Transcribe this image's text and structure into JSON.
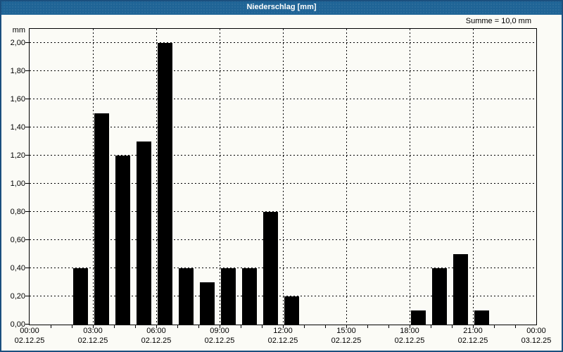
{
  "window": {
    "title": "Niederschlag [mm]"
  },
  "colors": {
    "titlebar_bg": "#1f6496",
    "titlebar_text": "#ffffff",
    "window_border": "#1b4f7e",
    "background": "#fbfbf6",
    "bar_fill": "#000000",
    "axis_line": "#000000",
    "grid_line": "#000000",
    "label_text": "#000000"
  },
  "chart_data": {
    "type": "bar",
    "title": "Niederschlag [mm]",
    "summary_label": "Summe = 10,0 mm",
    "sum_mm": 10.0,
    "y_unit": "mm",
    "ylim": [
      0,
      2.1
    ],
    "ytick_interval": 0.2,
    "yticks": [
      {
        "value": 0.0,
        "label": "0,00"
      },
      {
        "value": 0.2,
        "label": "0,20"
      },
      {
        "value": 0.4,
        "label": "0,40"
      },
      {
        "value": 0.6,
        "label": "0,60"
      },
      {
        "value": 0.8,
        "label": "0,80"
      },
      {
        "value": 1.0,
        "label": "1,00"
      },
      {
        "value": 1.2,
        "label": "1,20"
      },
      {
        "value": 1.4,
        "label": "1,40"
      },
      {
        "value": 1.6,
        "label": "1,60"
      },
      {
        "value": 1.8,
        "label": "1,80"
      },
      {
        "value": 2.0,
        "label": "2,00"
      }
    ],
    "x_hours_range": [
      0,
      24
    ],
    "x_minor_tick_hours": 1,
    "x_major_ticks": [
      {
        "hour": 0,
        "time": "00:00",
        "date": "02.12.25"
      },
      {
        "hour": 3,
        "time": "03:00",
        "date": "02.12.25"
      },
      {
        "hour": 6,
        "time": "06:00",
        "date": "02.12.25"
      },
      {
        "hour": 9,
        "time": "09:00",
        "date": "02.12.25"
      },
      {
        "hour": 12,
        "time": "12:00",
        "date": "02.12.25"
      },
      {
        "hour": 15,
        "time": "15:00",
        "date": "02.12.25"
      },
      {
        "hour": 18,
        "time": "18:00",
        "date": "02.12.25"
      },
      {
        "hour": 21,
        "time": "21:00",
        "date": "02.12.25"
      },
      {
        "hour": 24,
        "time": "00:00",
        "date": "03.12.25"
      }
    ],
    "grid": {
      "horizontal": "dashed",
      "vertical_dashed_every_hours": 3
    },
    "bars_unit": "mm",
    "bars": [
      {
        "start_hour": 2,
        "value": 0.4
      },
      {
        "start_hour": 3,
        "value": 1.5
      },
      {
        "start_hour": 4,
        "value": 1.2
      },
      {
        "start_hour": 5,
        "value": 1.3
      },
      {
        "start_hour": 6,
        "value": 2.0
      },
      {
        "start_hour": 7,
        "value": 0.4
      },
      {
        "start_hour": 8,
        "value": 0.3
      },
      {
        "start_hour": 9,
        "value": 0.4
      },
      {
        "start_hour": 10,
        "value": 0.4
      },
      {
        "start_hour": 11,
        "value": 0.8
      },
      {
        "start_hour": 12,
        "value": 0.2
      },
      {
        "start_hour": 18,
        "value": 0.1
      },
      {
        "start_hour": 19,
        "value": 0.4
      },
      {
        "start_hour": 20,
        "value": 0.5
      },
      {
        "start_hour": 21,
        "value": 0.1
      }
    ]
  }
}
